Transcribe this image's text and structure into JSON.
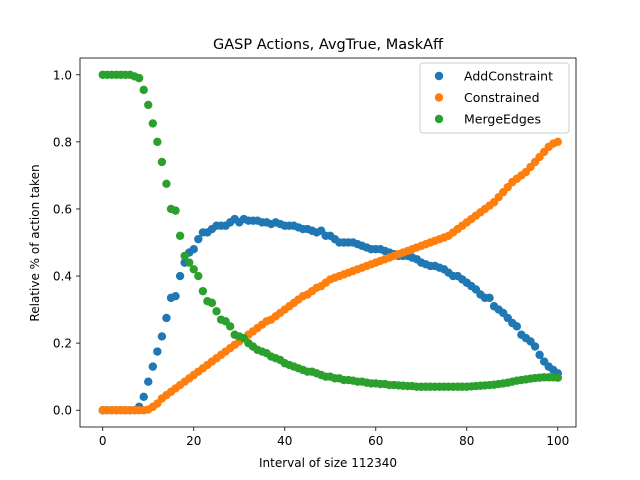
{
  "chart_data": {
    "type": "scatter",
    "title": "GASP Actions, AvgTrue, MaskAff",
    "xlabel": "Interval of size 112340",
    "ylabel": "Relative % of action taken",
    "xlim": [
      -5,
      104
    ],
    "ylim": [
      -0.05,
      1.05
    ],
    "xticks": [
      0,
      20,
      40,
      60,
      80,
      100
    ],
    "yticks": [
      0.0,
      0.2,
      0.4,
      0.6,
      0.8,
      1.0
    ],
    "ytick_labels": [
      "0.0",
      "0.2",
      "0.4",
      "0.6",
      "0.8",
      "1.0"
    ],
    "grid": false,
    "legend_position": "upper right",
    "series": [
      {
        "name": "AddConstraint",
        "color": "#1f77b4",
        "y": [
          0,
          0,
          0,
          0,
          0,
          0,
          0,
          0,
          0.01,
          0.04,
          0.085,
          0.13,
          0.175,
          0.22,
          0.275,
          0.335,
          0.34,
          0.4,
          0.44,
          0.47,
          0.48,
          0.51,
          0.53,
          0.53,
          0.54,
          0.55,
          0.55,
          0.55,
          0.56,
          0.57,
          0.56,
          0.57,
          0.565,
          0.565,
          0.565,
          0.56,
          0.56,
          0.555,
          0.56,
          0.555,
          0.55,
          0.55,
          0.55,
          0.545,
          0.54,
          0.54,
          0.535,
          0.53,
          0.535,
          0.52,
          0.52,
          0.51,
          0.5,
          0.5,
          0.5,
          0.5,
          0.495,
          0.49,
          0.485,
          0.48,
          0.48,
          0.48,
          0.475,
          0.47,
          0.465,
          0.46,
          0.46,
          0.46,
          0.455,
          0.45,
          0.44,
          0.435,
          0.43,
          0.43,
          0.425,
          0.42,
          0.41,
          0.4,
          0.4,
          0.39,
          0.38,
          0.37,
          0.36,
          0.345,
          0.335,
          0.335,
          0.31,
          0.3,
          0.29,
          0.275,
          0.26,
          0.25,
          0.225,
          0.215,
          0.205,
          0.19,
          0.165,
          0.145,
          0.13,
          0.12,
          0.11
        ]
      },
      {
        "name": "Constrained",
        "color": "#ff7f0e",
        "y": [
          0,
          0,
          0,
          0,
          0,
          0,
          0,
          0,
          0,
          0,
          0.002,
          0.01,
          0.02,
          0.035,
          0.045,
          0.055,
          0.065,
          0.075,
          0.085,
          0.095,
          0.105,
          0.115,
          0.125,
          0.135,
          0.145,
          0.155,
          0.165,
          0.175,
          0.185,
          0.195,
          0.205,
          0.215,
          0.225,
          0.235,
          0.245,
          0.255,
          0.265,
          0.27,
          0.28,
          0.29,
          0.3,
          0.31,
          0.32,
          0.33,
          0.34,
          0.345,
          0.355,
          0.365,
          0.37,
          0.38,
          0.39,
          0.395,
          0.4,
          0.405,
          0.41,
          0.415,
          0.42,
          0.425,
          0.43,
          0.435,
          0.44,
          0.445,
          0.45,
          0.455,
          0.46,
          0.465,
          0.47,
          0.475,
          0.48,
          0.485,
          0.49,
          0.495,
          0.5,
          0.505,
          0.51,
          0.515,
          0.52,
          0.53,
          0.54,
          0.55,
          0.56,
          0.57,
          0.58,
          0.59,
          0.6,
          0.61,
          0.62,
          0.635,
          0.65,
          0.665,
          0.68,
          0.69,
          0.7,
          0.71,
          0.725,
          0.74,
          0.755,
          0.77,
          0.785,
          0.795,
          0.8
        ]
      },
      {
        "name": "MergeEdges",
        "color": "#2ca02c",
        "y": [
          1.0,
          1.0,
          1.0,
          1.0,
          1.0,
          1.0,
          1.0,
          0.995,
          0.99,
          0.955,
          0.91,
          0.855,
          0.8,
          0.74,
          0.675,
          0.6,
          0.595,
          0.52,
          0.46,
          0.44,
          0.42,
          0.4,
          0.355,
          0.325,
          0.32,
          0.295,
          0.27,
          0.265,
          0.25,
          0.225,
          0.22,
          0.215,
          0.2,
          0.19,
          0.18,
          0.175,
          0.17,
          0.16,
          0.155,
          0.15,
          0.14,
          0.135,
          0.13,
          0.125,
          0.12,
          0.115,
          0.115,
          0.11,
          0.105,
          0.1,
          0.1,
          0.095,
          0.095,
          0.09,
          0.09,
          0.088,
          0.085,
          0.085,
          0.082,
          0.08,
          0.08,
          0.078,
          0.078,
          0.075,
          0.075,
          0.074,
          0.073,
          0.072,
          0.072,
          0.07,
          0.07,
          0.07,
          0.07,
          0.07,
          0.07,
          0.07,
          0.07,
          0.07,
          0.07,
          0.07,
          0.07,
          0.071,
          0.072,
          0.073,
          0.074,
          0.075,
          0.076,
          0.078,
          0.08,
          0.082,
          0.085,
          0.088,
          0.09,
          0.092,
          0.094,
          0.096,
          0.097,
          0.098,
          0.098,
          0.098,
          0.097
        ]
      }
    ]
  }
}
